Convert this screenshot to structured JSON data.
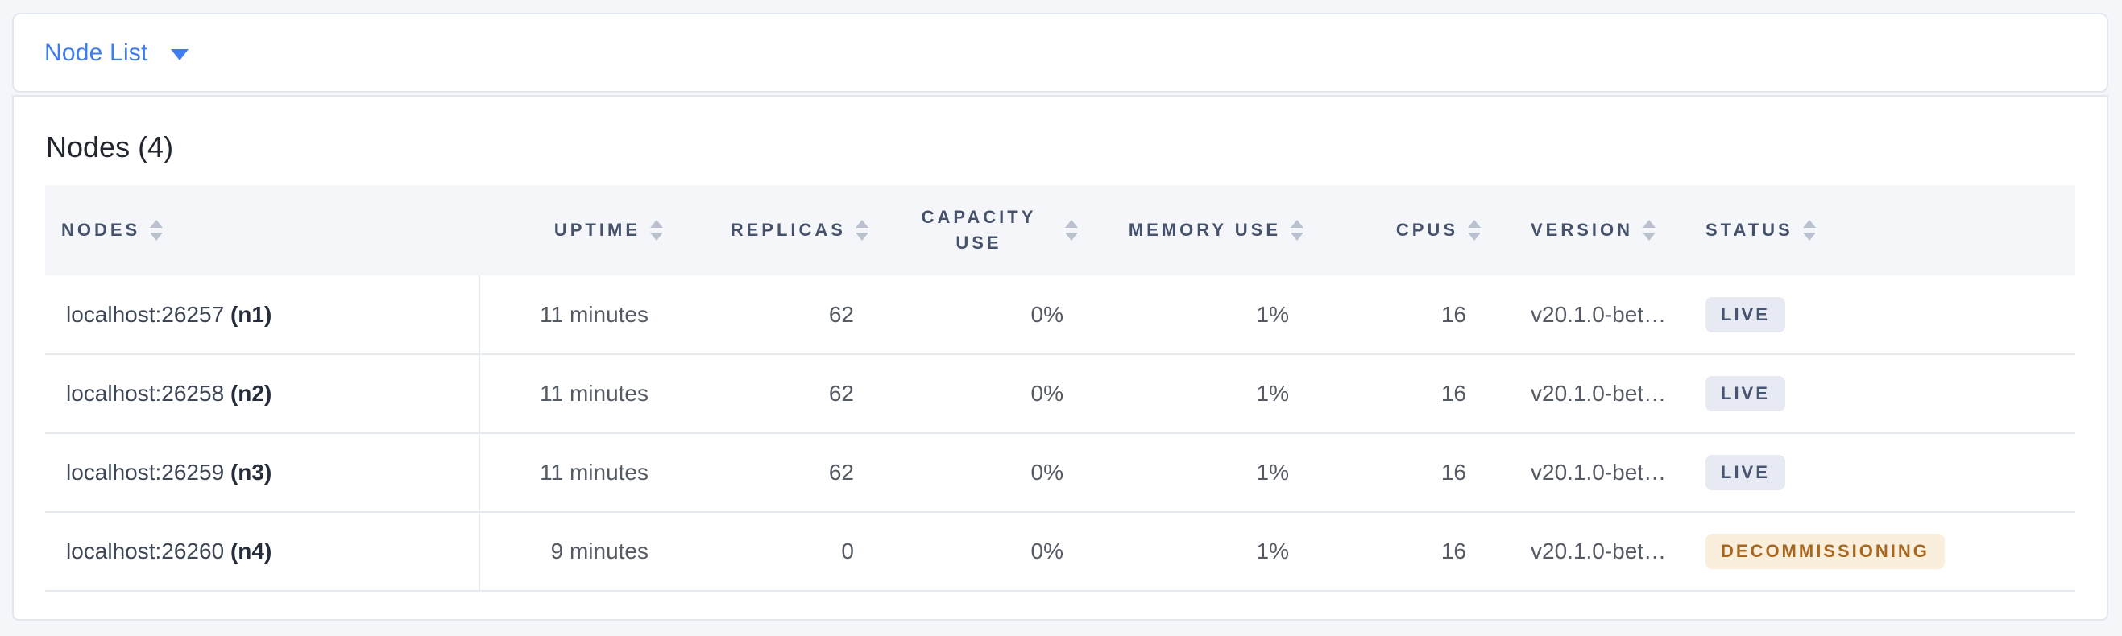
{
  "colors": {
    "page_bg": "#f4f6fa",
    "accent": "#3f7cee",
    "border": "#e2e6ee",
    "row_border": "#e6eaf1",
    "header_text": "#46526b",
    "sort_icon": "#bac1ce",
    "live_badge_bg": "#e7eaf2",
    "live_badge_text": "#475572",
    "decommissioning_badge_bg": "#f9efdc",
    "decommissioning_badge_text": "#a8661e"
  },
  "selector": {
    "label": "Node List",
    "icon": "caret-down-icon"
  },
  "panel": {
    "title": "Nodes (4)",
    "table": {
      "columns": [
        {
          "key": "nodes",
          "label": "NODES",
          "align": "left",
          "sortable": true
        },
        {
          "key": "uptime",
          "label": "UPTIME",
          "align": "right",
          "sortable": true
        },
        {
          "key": "replicas",
          "label": "REPLICAS",
          "align": "right",
          "sortable": true
        },
        {
          "key": "capacity_use",
          "label": "CAPACITY USE",
          "align": "right",
          "sortable": true
        },
        {
          "key": "memory_use",
          "label": "MEMORY USE",
          "align": "right",
          "sortable": true
        },
        {
          "key": "cpus",
          "label": "CPUS",
          "align": "right",
          "sortable": true
        },
        {
          "key": "version",
          "label": "VERSION",
          "align": "left",
          "sortable": true
        },
        {
          "key": "status",
          "label": "STATUS",
          "align": "left",
          "sortable": true
        }
      ],
      "rows": [
        {
          "address": "localhost:26257",
          "node_id": "(n1)",
          "uptime": "11 minutes",
          "replicas": "62",
          "capacity_use": "0%",
          "memory_use": "1%",
          "cpus": "16",
          "version": "v20.1.0-bet…",
          "status": "LIVE",
          "status_type": "live"
        },
        {
          "address": "localhost:26258",
          "node_id": "(n2)",
          "uptime": "11 minutes",
          "replicas": "62",
          "capacity_use": "0%",
          "memory_use": "1%",
          "cpus": "16",
          "version": "v20.1.0-bet…",
          "status": "LIVE",
          "status_type": "live"
        },
        {
          "address": "localhost:26259",
          "node_id": "(n3)",
          "uptime": "11 minutes",
          "replicas": "62",
          "capacity_use": "0%",
          "memory_use": "1%",
          "cpus": "16",
          "version": "v20.1.0-bet…",
          "status": "LIVE",
          "status_type": "live"
        },
        {
          "address": "localhost:26260",
          "node_id": "(n4)",
          "uptime": "9 minutes",
          "replicas": "0",
          "capacity_use": "0%",
          "memory_use": "1%",
          "cpus": "16",
          "version": "v20.1.0-bet…",
          "status": "DECOMMISSIONING",
          "status_type": "decommissioning"
        }
      ]
    }
  }
}
